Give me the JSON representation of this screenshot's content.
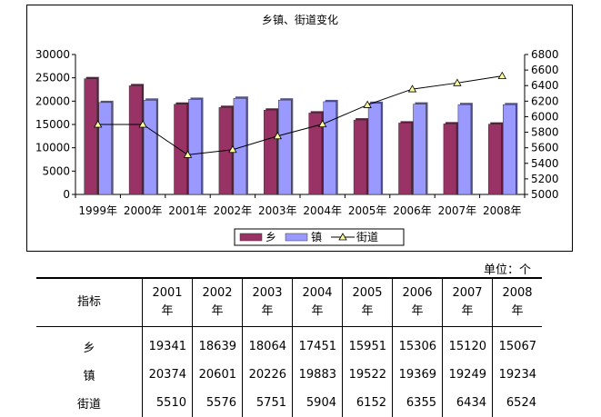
{
  "chart_data": {
    "type": "bar",
    "title": "乡镇、街道变化",
    "categories": [
      "1999年",
      "2000年",
      "2001年",
      "2002年",
      "2003年",
      "2004年",
      "2005年",
      "2006年",
      "2007年",
      "2008年"
    ],
    "series": [
      {
        "name": "乡",
        "kind": "bar",
        "axis": "left",
        "color": "#993366",
        "values": [
          24800,
          23300,
          19341,
          18639,
          18064,
          17451,
          15951,
          15306,
          15120,
          15067
        ]
      },
      {
        "name": "镇",
        "kind": "bar",
        "axis": "left",
        "color": "#9999ff",
        "values": [
          19700,
          20200,
          20374,
          20601,
          20226,
          19883,
          19522,
          19369,
          19249,
          19234
        ]
      },
      {
        "name": "街道",
        "kind": "line",
        "axis": "right",
        "color": "#000000",
        "marker_color": "#ffff99",
        "values": [
          5900,
          5900,
          5510,
          5576,
          5751,
          5904,
          6152,
          6355,
          6434,
          6524
        ]
      }
    ],
    "left_axis": {
      "min": 0,
      "max": 30000,
      "step": 5000,
      "ticks": [
        "0",
        "5000",
        "10000",
        "15000",
        "20000",
        "25000",
        "30000"
      ]
    },
    "right_axis": {
      "min": 5000,
      "max": 6800,
      "step": 200,
      "ticks": [
        "5000",
        "5200",
        "5400",
        "5600",
        "5800",
        "6000",
        "6200",
        "6400",
        "6600",
        "6800"
      ]
    },
    "legend_position": "bottom",
    "grid": false
  },
  "unit_label": "单位：个",
  "table": {
    "header_label": "指标",
    "years": [
      {
        "num": "2001",
        "suffix": "年"
      },
      {
        "num": "2002",
        "suffix": "年"
      },
      {
        "num": "2003",
        "suffix": "年"
      },
      {
        "num": "2004",
        "suffix": "年"
      },
      {
        "num": "2005",
        "suffix": "年"
      },
      {
        "num": "2006",
        "suffix": "年"
      },
      {
        "num": "2007",
        "suffix": "年"
      },
      {
        "num": "2008",
        "suffix": "年"
      }
    ],
    "rows": [
      {
        "label": "乡",
        "values": [
          "19341",
          "18639",
          "18064",
          "17451",
          "15951",
          "15306",
          "15120",
          "15067"
        ]
      },
      {
        "label": "镇",
        "values": [
          "20374",
          "20601",
          "20226",
          "19883",
          "19522",
          "19369",
          "19249",
          "19234"
        ]
      },
      {
        "label": "街道",
        "values": [
          "5510",
          "5576",
          "5751",
          "5904",
          "6152",
          "6355",
          "6434",
          "6524"
        ]
      }
    ]
  }
}
